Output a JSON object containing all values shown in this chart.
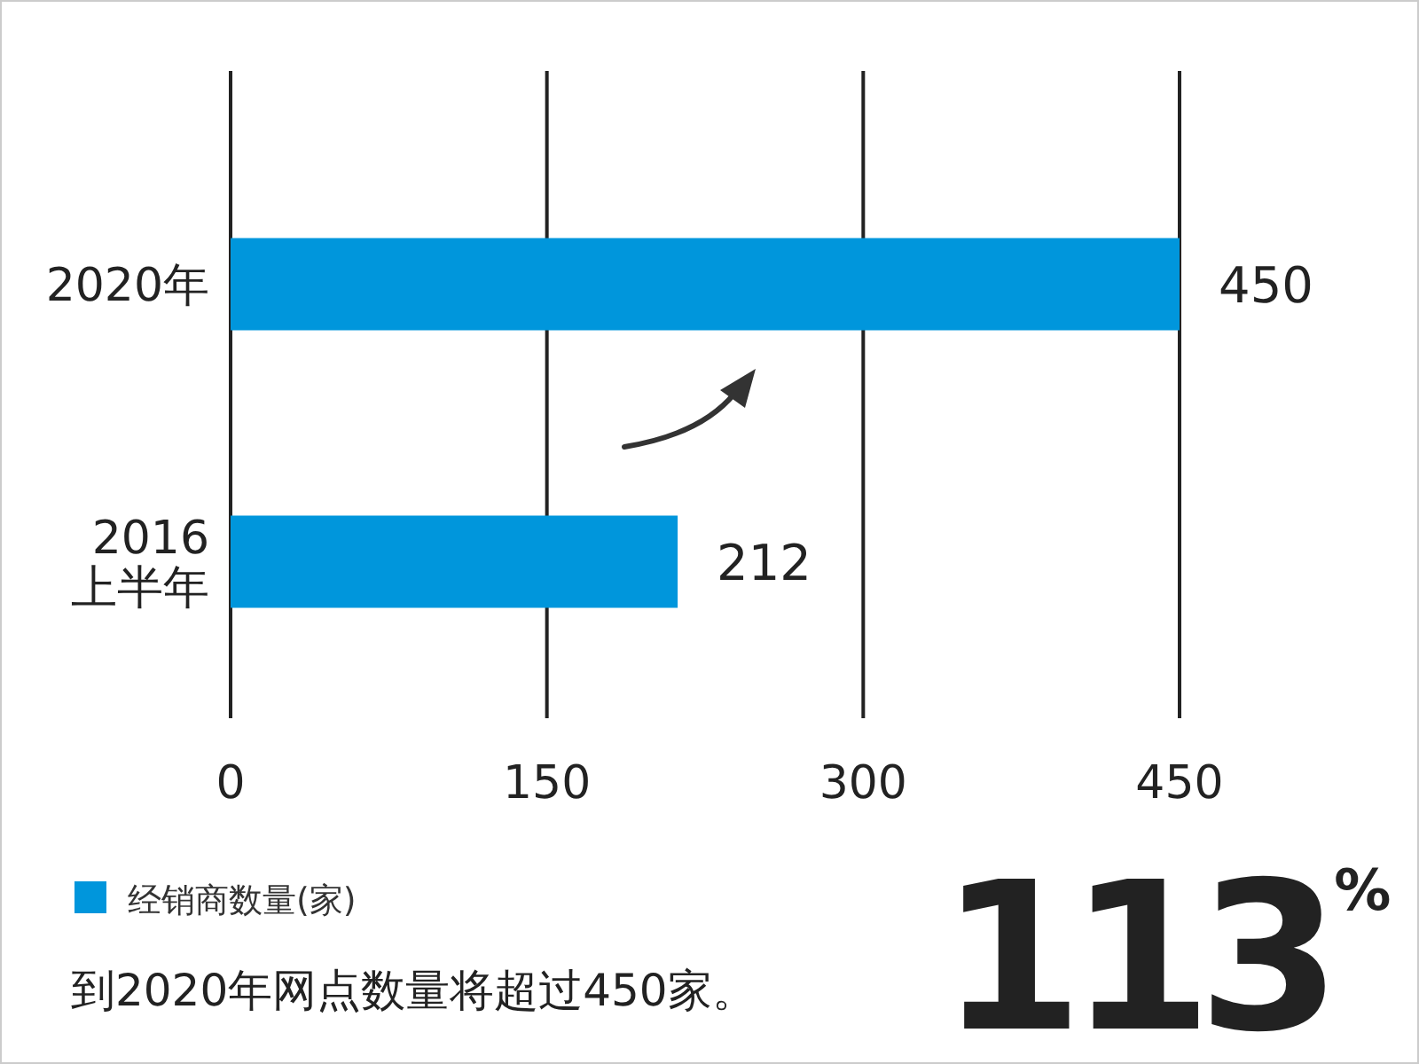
{
  "chart_data": {
    "type": "bar",
    "orientation": "horizontal",
    "categories": [
      "2020年",
      "2016\n上半年"
    ],
    "series": [
      {
        "name": "经销商数量(家)",
        "color": "#0096dc",
        "values": [
          450,
          212
        ]
      }
    ],
    "xlim": [
      0,
      450
    ],
    "xticks": [
      0,
      150,
      300,
      450
    ],
    "grid": "x",
    "legend": "bottom left",
    "data_labels": true,
    "annotations": [
      "到2020年网点数量将超过450家。",
      "113$^{%}$"
    ]
  }
}
